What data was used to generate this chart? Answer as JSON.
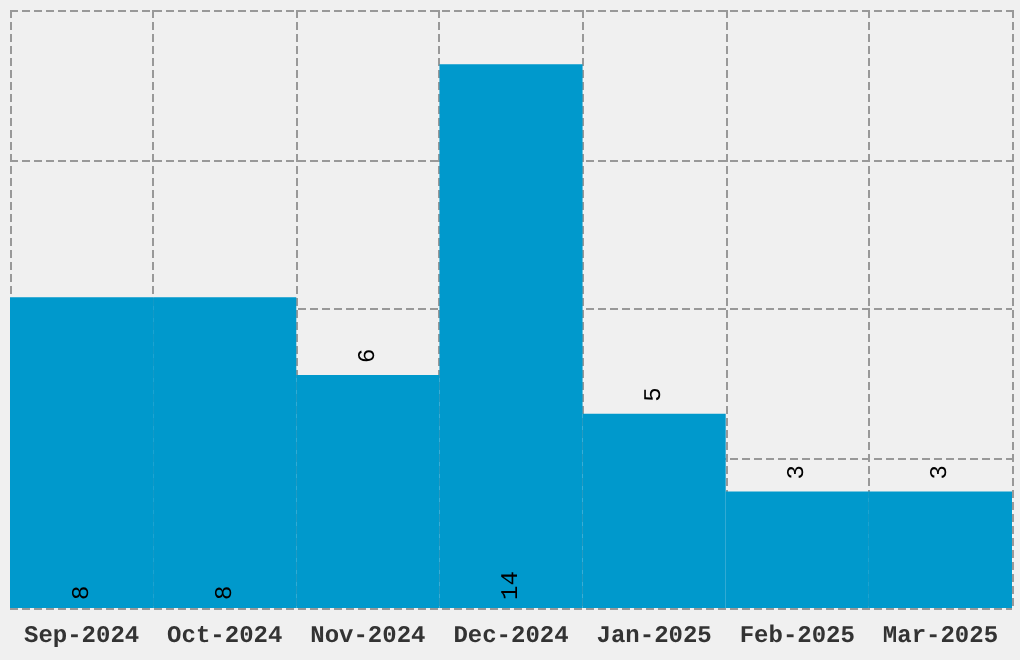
{
  "chart_data": {
    "type": "bar",
    "categories": [
      "Sep-2024",
      "Oct-2024",
      "Nov-2024",
      "Dec-2024",
      "Jan-2025",
      "Feb-2025",
      "Mar-2025"
    ],
    "values": [
      8,
      8,
      6,
      14,
      5,
      3,
      3
    ],
    "color": "#0099cc",
    "data_labels": true,
    "ylim": [
      0,
      15.4
    ],
    "yticks": [
      {
        "value": 0,
        "label": null
      },
      {
        "value": 3.85,
        "label": null
      },
      {
        "value": 7.7,
        "label": null
      },
      {
        "value": 11.55,
        "label": null
      },
      {
        "value": 15.4,
        "label": null
      }
    ],
    "tick_labels": "x",
    "grid": true
  }
}
